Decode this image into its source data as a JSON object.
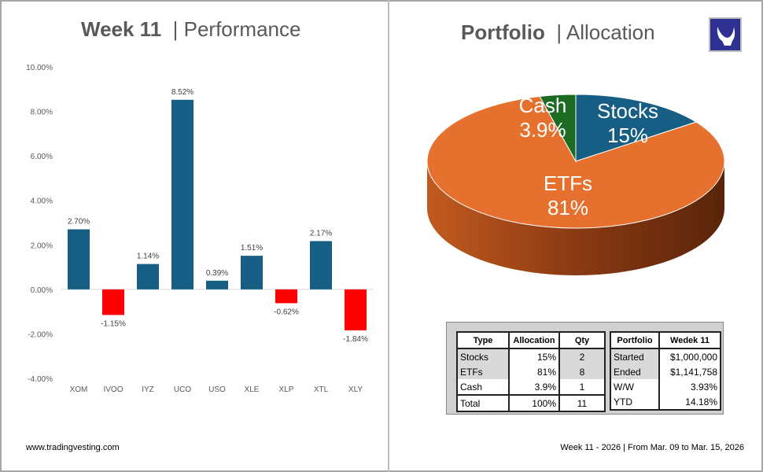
{
  "left": {
    "title_bold": "Week 11",
    "title_rest": "| Performance",
    "footer": "www.tradingvesting.com"
  },
  "right": {
    "title_bold": "Portfolio",
    "title_rest": "| Allocation",
    "footer": "Week 11 - 2026 | From Mar. 09 to Mar. 15, 2026",
    "logo": "bull-logo"
  },
  "chart_data": [
    {
      "type": "bar",
      "categories": [
        "XOM",
        "IVOO",
        "IYZ",
        "UCO",
        "USO",
        "XLE",
        "XLP",
        "XTL",
        "XLY"
      ],
      "values": [
        2.7,
        -1.15,
        1.14,
        8.52,
        0.39,
        1.51,
        -0.62,
        2.17,
        -1.84
      ],
      "data_labels": [
        "2.70%",
        "-1.15%",
        "1.14%",
        "8.52%",
        "0.39%",
        "1.51%",
        "-0.62%",
        "2.17%",
        "-1.84%"
      ],
      "ylim": [
        -4,
        10
      ],
      "yticks": [
        "10.00%",
        "8.00%",
        "6.00%",
        "4.00%",
        "2.00%",
        "0.00%",
        "-2.00%",
        "-4.00%"
      ],
      "colors": {
        "positive": "#165e83",
        "negative": "#ff0000"
      },
      "grid": false
    },
    {
      "type": "pie",
      "style": "3d",
      "slices": [
        {
          "label": "Stocks",
          "value": 15,
          "text": "15%",
          "color": "#175e85"
        },
        {
          "label": "ETFs",
          "value": 81,
          "text": "81%",
          "color": "#e6712f"
        },
        {
          "label": "Cash",
          "value": 3.9,
          "text": "3.9%",
          "color": "#1b6b23"
        }
      ]
    }
  ],
  "alloc_table": {
    "headers": [
      "Type",
      "Allocation",
      "Qty"
    ],
    "rows": [
      [
        "Stocks",
        "15%",
        "2"
      ],
      [
        "ETFs",
        "81%",
        "8"
      ],
      [
        "Cash",
        "3.9%",
        "1"
      ]
    ],
    "total": [
      "Total",
      "100%",
      "11"
    ]
  },
  "portfolio_table": {
    "headers": [
      "Portfolio",
      "Wedek 11"
    ],
    "rows": [
      [
        "Started",
        "$1,000,000"
      ],
      [
        "Ended",
        "$1,141,758"
      ],
      [
        "W/W",
        "3.93%"
      ],
      [
        "YTD",
        "14.18%"
      ]
    ]
  }
}
